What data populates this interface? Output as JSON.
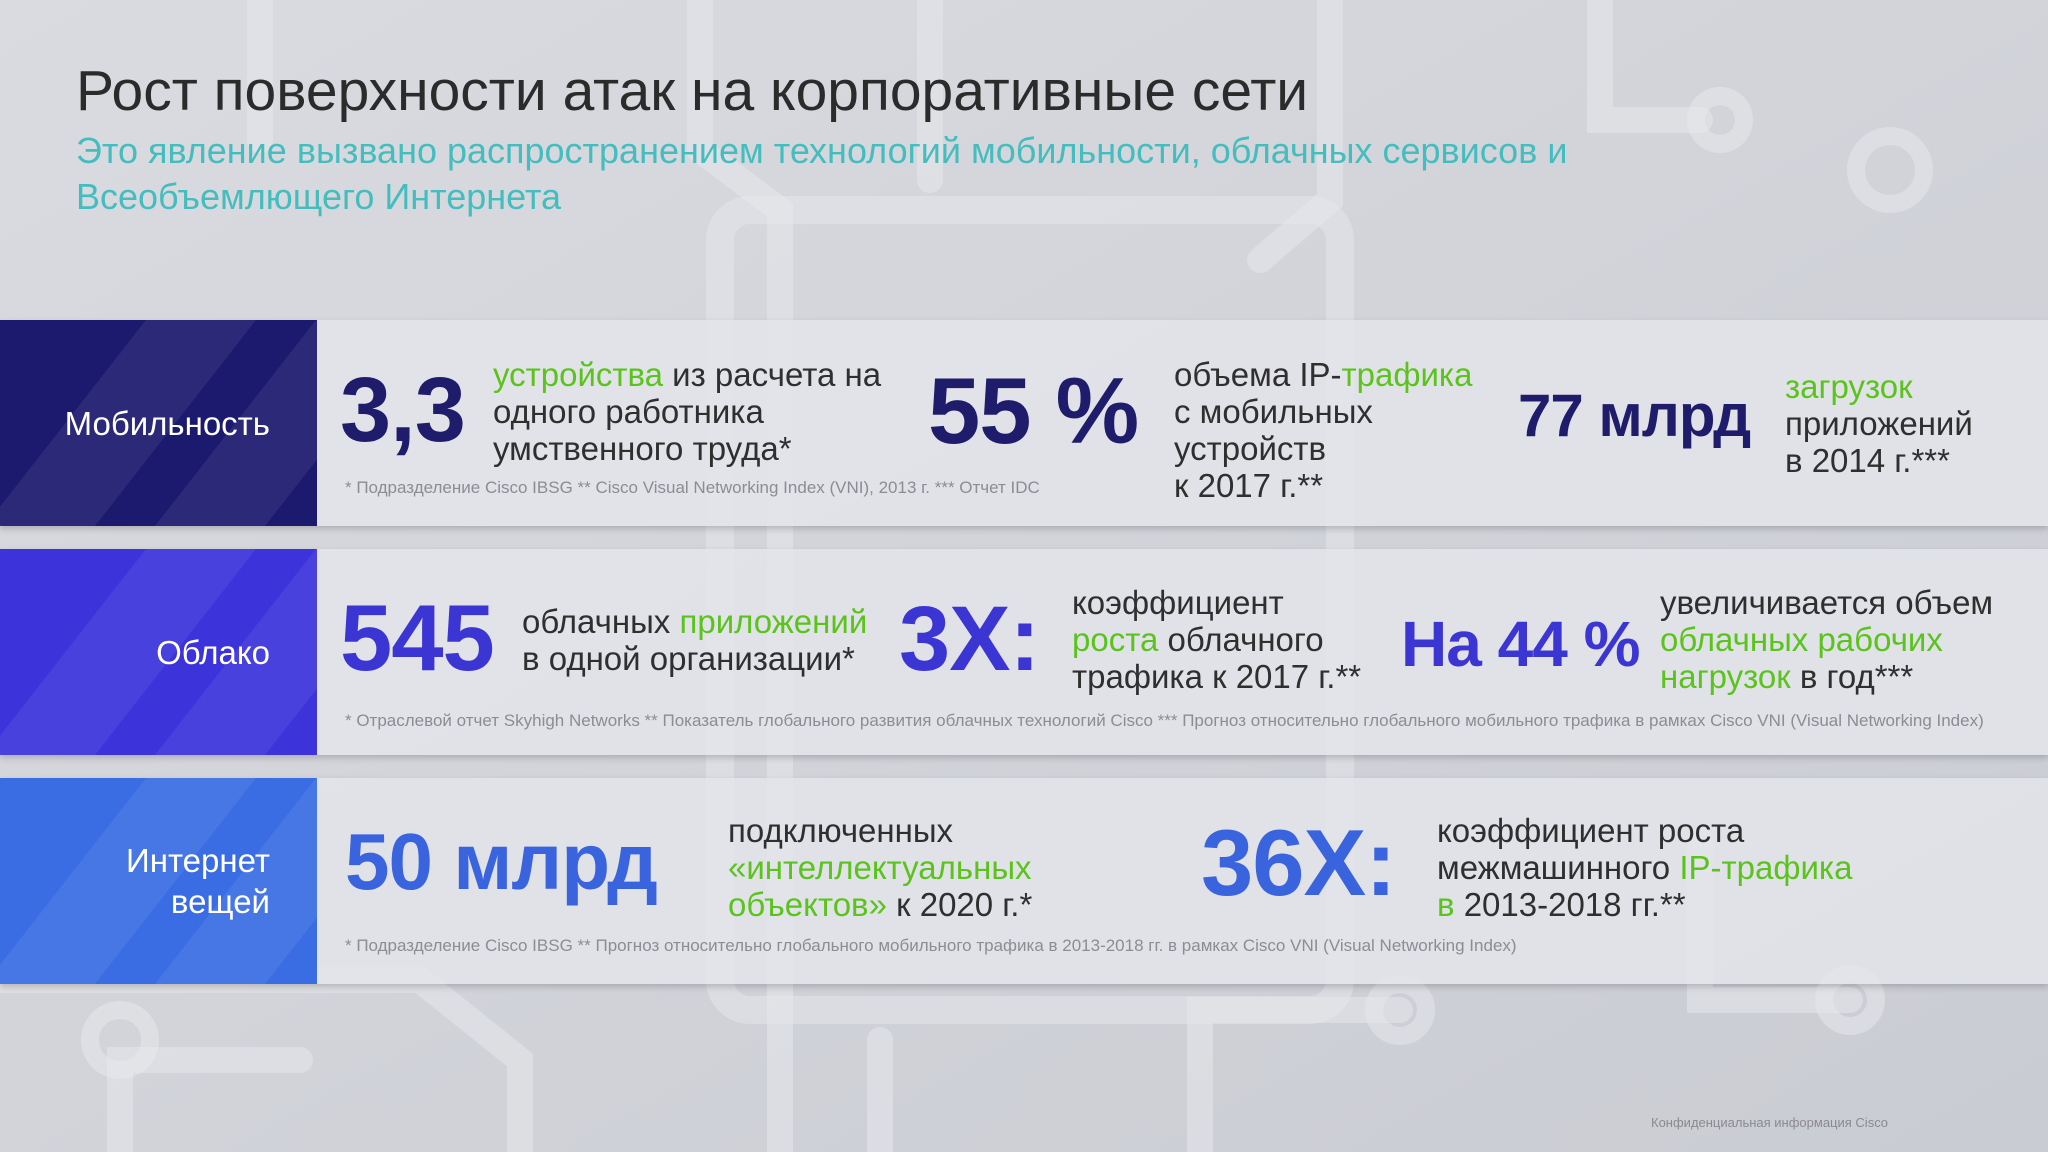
{
  "slide": {
    "title": "Рост поверхности атак на корпоративные сети",
    "subtitle": "Это явление вызвано распространением технологий мобильности, облачных сервисов и Всеобъемлющего Интернета",
    "confidential": "Конфиденциальная информация Cisco"
  },
  "colors": {
    "mobility": "#1c1a6e",
    "cloud": "#3c33db",
    "iot": "#3a6ce3",
    "accent_green": "#5ac41c",
    "subtitle_teal": "#44bdbf"
  },
  "mobility": {
    "label": "Мобильность",
    "s1": {
      "value": "3,3",
      "g1": "устройства",
      "t1": " из расчета на",
      "l2": "одного работника",
      "l3": "умственного труда*"
    },
    "s2": {
      "value": "55 %",
      "t1": "объема IP-",
      "g1": "трафика",
      "l2": "с мобильных",
      "l3": "устройств",
      "l4": "к 2017 г.**"
    },
    "s3": {
      "value": "77 млрд",
      "g1": "загрузок",
      "l2": "приложений",
      "l3": "в 2014 г.***"
    },
    "footnote": "* Подразделение Cisco IBSG ** Cisco Visual Networking Index (VNI), 2013 г. *** Отчет IDC"
  },
  "cloud": {
    "label": "Облако",
    "s1": {
      "value": "545",
      "t1": "облачных ",
      "g1": "приложений",
      "l2": "в одной организации*"
    },
    "s2": {
      "value": "3X:",
      "l1": "коэффициент",
      "g1": "роста",
      "t2": " облачного",
      "l3": "трафика к 2017 г.**"
    },
    "s3": {
      "value": "На 44 %",
      "l1": "увеличивается объем",
      "g1": "облачных рабочих",
      "g2": "нагрузок",
      "t3": " в год***"
    },
    "footnote": "* Отраслевой отчет Skyhigh Networks ** Показатель глобального развития облачных технологий Cisco *** Прогноз относительно глобального мобильного трафика в рамках Cisco VNI (Visual Networking Index)"
  },
  "iot": {
    "label1": "Интернет",
    "label2": "вещей",
    "s1": {
      "value": "50 млрд",
      "l1": "подключенных",
      "g1": "«интеллектуальных",
      "g2": "объектов»",
      "t3": " к 2020 г.*"
    },
    "s2": {
      "value": "36X:",
      "l1": "коэффициент роста",
      "t2": "межмашинного ",
      "g1": "IP-трафика",
      "g2": "в",
      "t3": " 2013-2018 гг.**"
    },
    "footnote": "* Подразделение Cisco IBSG ** Прогноз относительно глобального мобильного трафика в 2013-2018 гг. в рамках Cisco VNI (Visual Networking Index)"
  }
}
